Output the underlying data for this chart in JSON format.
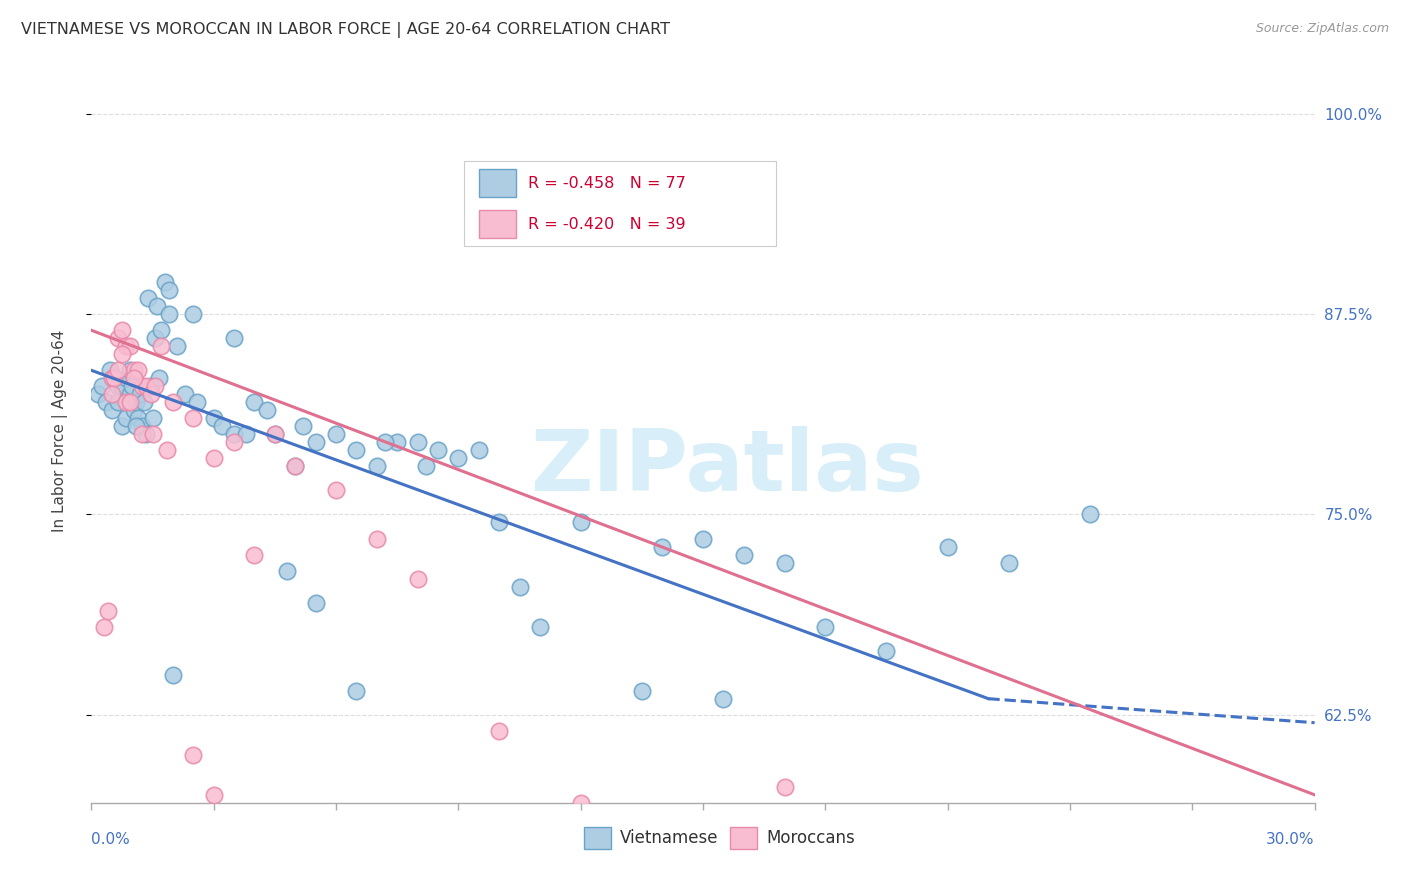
{
  "title": "VIETNAMESE VS MOROCCAN IN LABOR FORCE | AGE 20-64 CORRELATION CHART",
  "source": "Source: ZipAtlas.com",
  "ylabel": "In Labor Force | Age 20-64",
  "xlim": [
    0.0,
    30.0
  ],
  "ylim": [
    57.0,
    103.5
  ],
  "yticks": [
    62.5,
    75.0,
    87.5,
    100.0
  ],
  "xticks": [
    0.0,
    3.0,
    6.0,
    9.0,
    12.0,
    15.0,
    18.0,
    21.0,
    24.0,
    27.0,
    30.0
  ],
  "legend_blue_R": "R = -0.458",
  "legend_blue_N": "N = 77",
  "legend_pink_R": "R = -0.420",
  "legend_pink_N": "N = 39",
  "legend_label_blue": "Vietnamese",
  "legend_label_pink": "Moroccans",
  "color_blue_fill": "#aecde3",
  "color_blue_edge": "#6aa3c8",
  "color_pink_fill": "#f8bdd0",
  "color_pink_edge": "#e88aaa",
  "color_blue_line": "#4472c4",
  "color_pink_line": "#e07090",
  "watermark_color": "#d8eef8",
  "blue_x": [
    0.15,
    0.25,
    0.35,
    0.45,
    0.5,
    0.55,
    0.65,
    0.65,
    0.75,
    0.75,
    0.85,
    0.85,
    0.95,
    0.95,
    1.0,
    1.05,
    1.1,
    1.15,
    1.2,
    1.25,
    1.3,
    1.35,
    1.45,
    1.5,
    1.55,
    1.65,
    1.7,
    1.8,
    1.9,
    2.1,
    2.3,
    2.6,
    3.0,
    3.2,
    3.5,
    4.0,
    4.3,
    4.5,
    5.0,
    5.2,
    5.5,
    6.0,
    6.5,
    7.0,
    7.5,
    8.0,
    8.5,
    9.0,
    10.0,
    12.0,
    14.0,
    15.0,
    16.0,
    17.0,
    18.0,
    21.0,
    22.5,
    1.1,
    1.4,
    1.6,
    1.9,
    2.5,
    3.5,
    5.5,
    6.5,
    9.5,
    11.0,
    13.5,
    15.5,
    24.5,
    3.8,
    7.2,
    2.0,
    4.8,
    8.2,
    10.5,
    19.5
  ],
  "blue_y": [
    82.5,
    83.0,
    82.0,
    84.0,
    81.5,
    83.5,
    82.0,
    83.0,
    83.0,
    80.5,
    83.5,
    81.0,
    84.0,
    82.5,
    83.0,
    81.5,
    82.0,
    81.0,
    82.5,
    80.5,
    82.0,
    80.0,
    83.0,
    81.0,
    86.0,
    83.5,
    86.5,
    89.5,
    89.0,
    85.5,
    82.5,
    82.0,
    81.0,
    80.5,
    80.0,
    82.0,
    81.5,
    80.0,
    78.0,
    80.5,
    79.5,
    80.0,
    79.0,
    78.0,
    79.5,
    79.5,
    79.0,
    78.5,
    74.5,
    74.5,
    73.0,
    73.5,
    72.5,
    72.0,
    68.0,
    73.0,
    72.0,
    80.5,
    88.5,
    88.0,
    87.5,
    87.5,
    86.0,
    69.5,
    64.0,
    79.0,
    68.0,
    64.0,
    63.5,
    75.0,
    80.0,
    79.5,
    65.0,
    71.5,
    78.0,
    70.5,
    66.5
  ],
  "pink_x": [
    0.3,
    0.4,
    0.5,
    0.55,
    0.65,
    0.75,
    0.85,
    0.95,
    1.05,
    1.15,
    1.25,
    1.35,
    1.45,
    1.55,
    1.7,
    2.0,
    2.5,
    3.0,
    3.5,
    4.0,
    4.5,
    5.0,
    6.0,
    7.0,
    8.0,
    10.0,
    12.0,
    17.0,
    0.5,
    0.65,
    0.75,
    0.85,
    0.95,
    1.05,
    1.25,
    1.5,
    1.85,
    2.5,
    3.0
  ],
  "pink_y": [
    68.0,
    69.0,
    83.5,
    83.5,
    86.0,
    86.5,
    85.5,
    85.5,
    84.0,
    84.0,
    83.0,
    83.0,
    82.5,
    83.0,
    85.5,
    82.0,
    81.0,
    78.5,
    79.5,
    72.5,
    80.0,
    78.0,
    76.5,
    73.5,
    71.0,
    61.5,
    57.0,
    58.0,
    82.5,
    84.0,
    85.0,
    82.0,
    82.0,
    83.5,
    80.0,
    80.0,
    79.0,
    60.0,
    57.5
  ],
  "blue_trend_x0": 0.0,
  "blue_trend_y0": 84.0,
  "blue_trend_x1": 22.0,
  "blue_trend_y1": 63.5,
  "blue_dash_x0": 22.0,
  "blue_dash_y0": 63.5,
  "blue_dash_x1": 30.0,
  "blue_dash_y1": 62.0,
  "pink_trend_x0": 0.0,
  "pink_trend_y0": 86.5,
  "pink_trend_x1": 30.0,
  "pink_trend_y1": 57.5,
  "background_color": "#ffffff",
  "grid_color": "#dddddd"
}
